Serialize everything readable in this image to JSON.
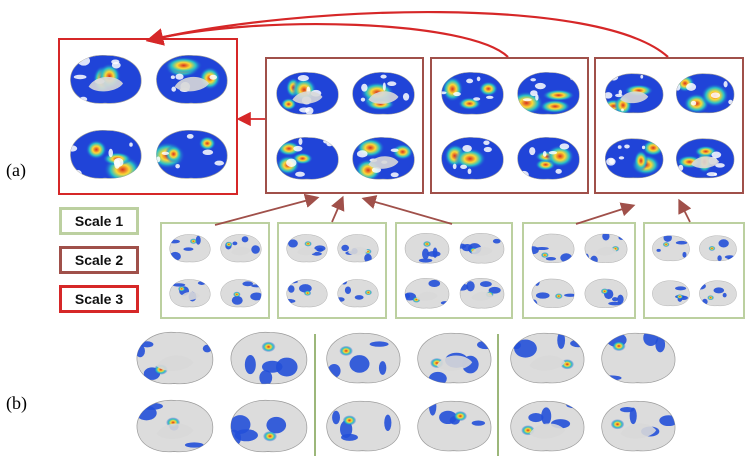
{
  "labels": {
    "a": "(a)",
    "b": "(b)"
  },
  "legend": [
    {
      "label": "Scale 1",
      "color": "#bcd0a0"
    },
    {
      "label": "Scale 2",
      "color": "#a0504a"
    },
    {
      "label": "Scale 3",
      "color": "#d62728"
    }
  ],
  "colors": {
    "arrow_red": "#d62728",
    "arrow_brown": "#a0504a",
    "divider_green": "#9cb77a"
  }
}
